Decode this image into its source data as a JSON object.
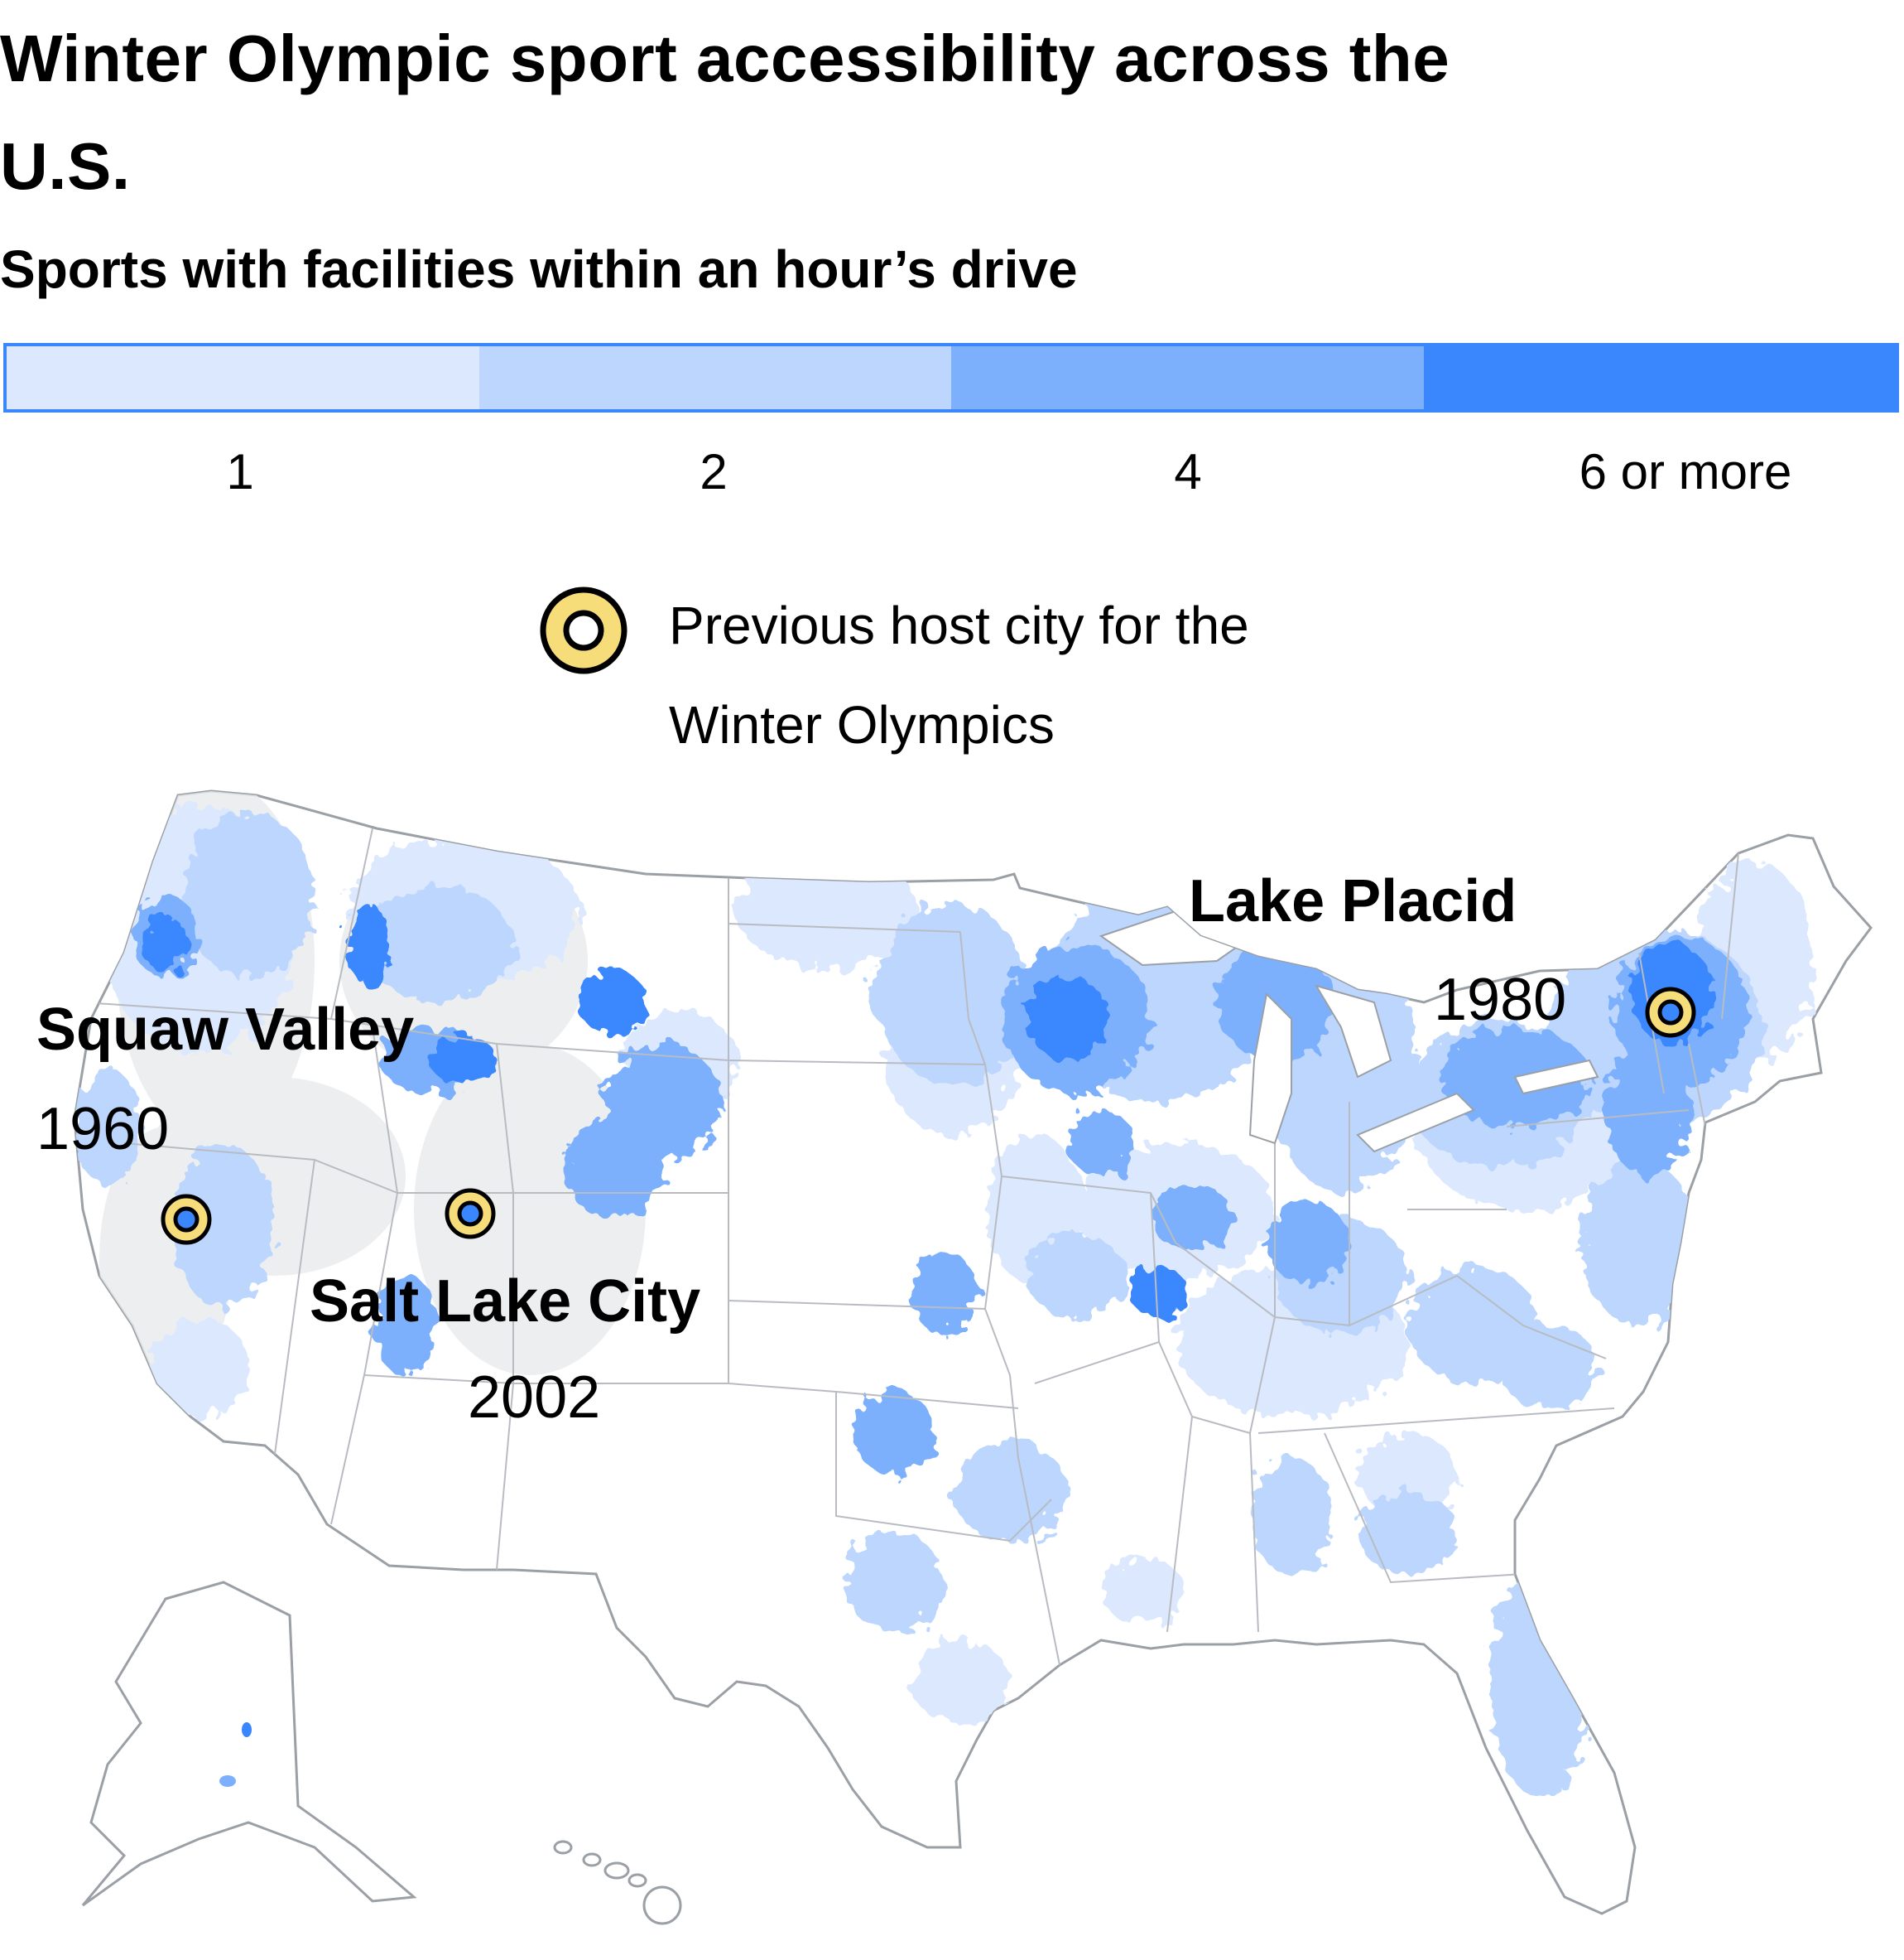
{
  "title": "Winter Olympic sport accessibility across the U.S.",
  "subtitle": "Sports with facilities within an hour’s drive",
  "legend": {
    "scale": [
      {
        "label": "1",
        "color": "#dbe8fd"
      },
      {
        "label": "2",
        "color": "#bcd6fd"
      },
      {
        "label": "4",
        "color": "#7cb0fd"
      },
      {
        "label": "6 or more",
        "color": "#3a87fd"
      }
    ],
    "host_city": {
      "label": "Previous host city for the Winter Olympics",
      "ring_color": "#f7dc7a",
      "center_color": "#3a87fd"
    }
  },
  "host_cities": [
    {
      "name": "Squaw Valley",
      "year": "1960"
    },
    {
      "name": "Salt Lake City",
      "year": "2002"
    },
    {
      "name": "Lake Placid",
      "year": "1980"
    }
  ],
  "colors": {
    "land": "#ffffff",
    "land_outline": "#9aa0a6",
    "state_border": "#b8bcc2",
    "terrain_shade": "#e6e7e9"
  }
}
